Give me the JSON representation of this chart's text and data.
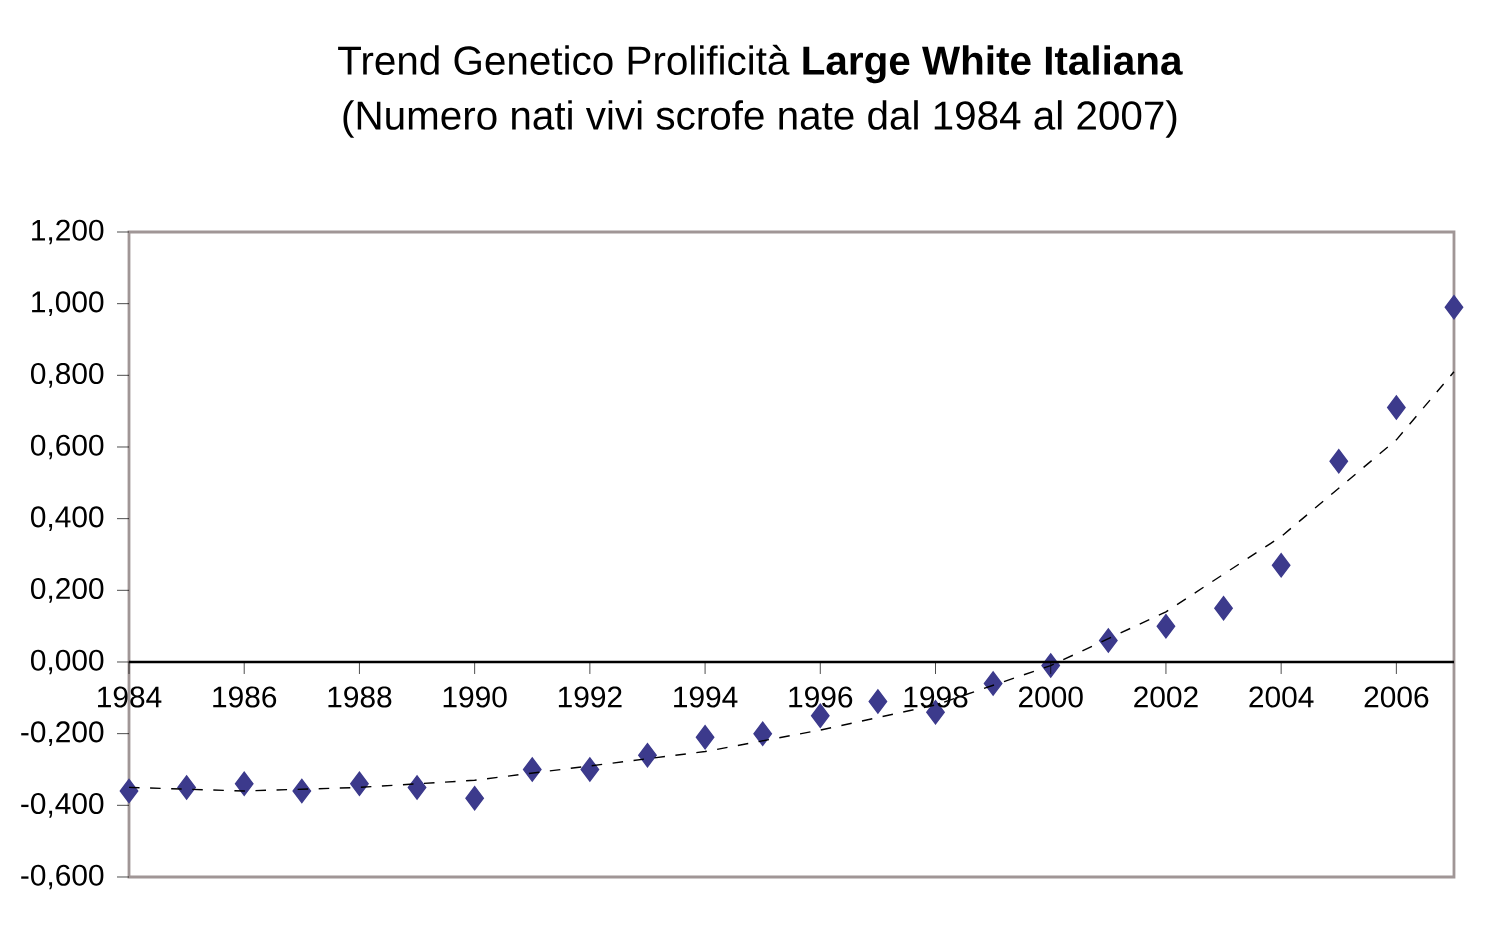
{
  "chart_data": {
    "type": "scatter",
    "title": "Trend Genetico Prolificità **Large White Italiana**",
    "subtitle": "(Numero nati vivi scrofe nate dal 1984 al 2007)",
    "x": [
      1984,
      1985,
      1986,
      1987,
      1988,
      1989,
      1990,
      1991,
      1992,
      1993,
      1994,
      1995,
      1996,
      1997,
      1998,
      1999,
      2000,
      2001,
      2002,
      2003,
      2004,
      2005,
      2006,
      2007
    ],
    "series": [
      {
        "color": "#3c3a8c",
        "marker": "diamond",
        "values": [
          -0.36,
          -0.35,
          -0.34,
          -0.36,
          -0.34,
          -0.35,
          -0.38,
          -0.3,
          -0.3,
          -0.26,
          -0.21,
          -0.2,
          -0.15,
          -0.11,
          -0.14,
          -0.06,
          -0.01,
          0.06,
          0.1,
          0.15,
          0.27,
          0.56,
          0.71,
          0.99
        ]
      },
      {
        "type": "line",
        "color": "#000000",
        "line_style": "dashed",
        "marker": "none",
        "x": [
          1984,
          1986,
          1988,
          1990,
          1992,
          1994,
          1996,
          1998,
          2000,
          2002,
          2004,
          2006,
          2007
        ],
        "values": [
          -0.35,
          -0.36,
          -0.35,
          -0.33,
          -0.29,
          -0.25,
          -0.19,
          -0.12,
          -0.01,
          0.14,
          0.35,
          0.62,
          0.81
        ]
      }
    ],
    "xlim": [
      1984,
      2007
    ],
    "xticks": [
      1984,
      1986,
      1988,
      1990,
      1992,
      1994,
      1996,
      1998,
      2000,
      2002,
      2004,
      2006
    ],
    "ylim": [
      -0.6,
      1.2
    ],
    "yticks": [
      {
        "value": -0.6,
        "label": "-0,600"
      },
      {
        "value": -0.4,
        "label": "-0,400"
      },
      {
        "value": -0.2,
        "label": "-0,200"
      },
      {
        "value": 0,
        "label": "0,000"
      },
      {
        "value": 0.2,
        "label": "0,200"
      },
      {
        "value": 0.4,
        "label": "0,400"
      },
      {
        "value": 0.6,
        "label": "0,600"
      },
      {
        "value": 0.8,
        "label": "0,800"
      },
      {
        "value": 1.0,
        "label": "1,000"
      },
      {
        "value": 1.2,
        "label": "1,200"
      }
    ],
    "grid": false
  }
}
